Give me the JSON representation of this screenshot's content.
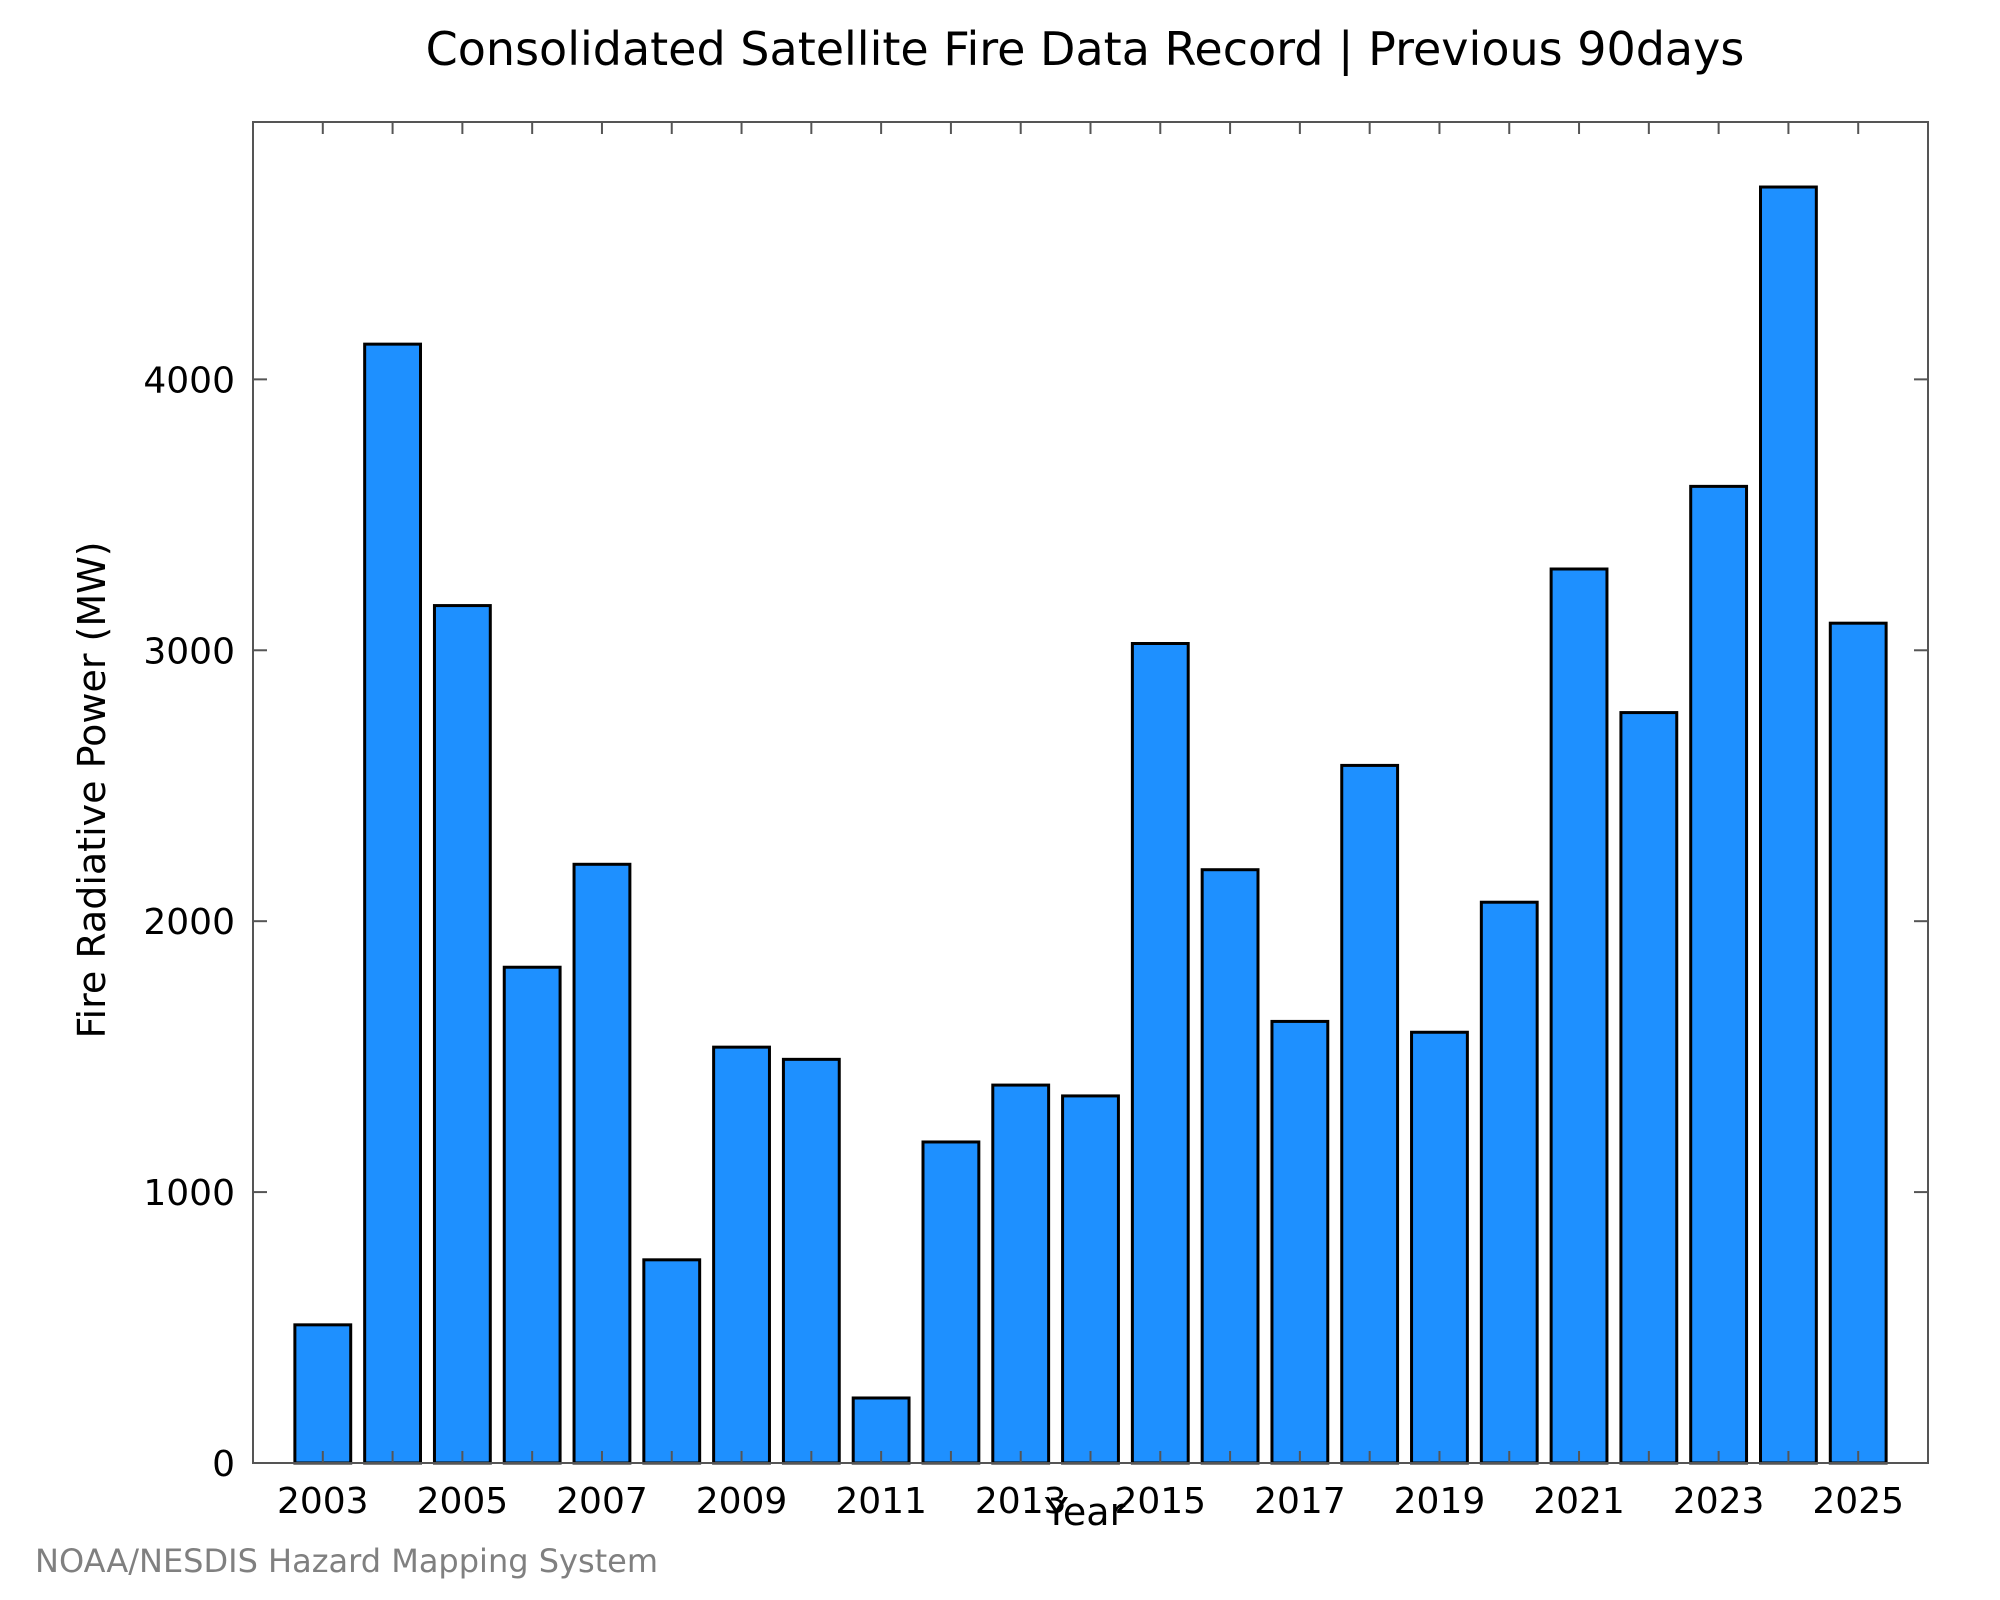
{
  "chart_data": {
    "type": "bar",
    "title": "Consolidated Satellite Fire Data Record | Previous 90days",
    "xlabel": "Year",
    "ylabel": "Fire Radiative Power (MW)",
    "categories": [
      "2003",
      "2004",
      "2005",
      "2006",
      "2007",
      "2008",
      "2009",
      "2010",
      "2011",
      "2012",
      "2013",
      "2014",
      "2015",
      "2016",
      "2017",
      "2018",
      "2019",
      "2020",
      "2021",
      "2022",
      "2023",
      "2024",
      "2025"
    ],
    "values": [
      510,
      4130,
      3165,
      1830,
      2210,
      750,
      1535,
      1490,
      240,
      1185,
      1395,
      1355,
      3025,
      2190,
      1630,
      2575,
      1590,
      2070,
      3300,
      2770,
      3605,
      4710,
      3100
    ],
    "x_tick_labels": [
      "2003",
      "2005",
      "2007",
      "2009",
      "2011",
      "2013",
      "2015",
      "2017",
      "2019",
      "2021",
      "2023",
      "2025"
    ],
    "y_tick_labels": [
      "0",
      "1000",
      "2000",
      "3000",
      "4000"
    ],
    "y_ticks": [
      0,
      1000,
      2000,
      3000,
      4000
    ],
    "ylim": [
      0,
      4950
    ],
    "grid": false,
    "legend": "none",
    "bar_color": "#1E90FF"
  },
  "footer": {
    "credit": "NOAA/NESDIS Hazard Mapping System"
  }
}
